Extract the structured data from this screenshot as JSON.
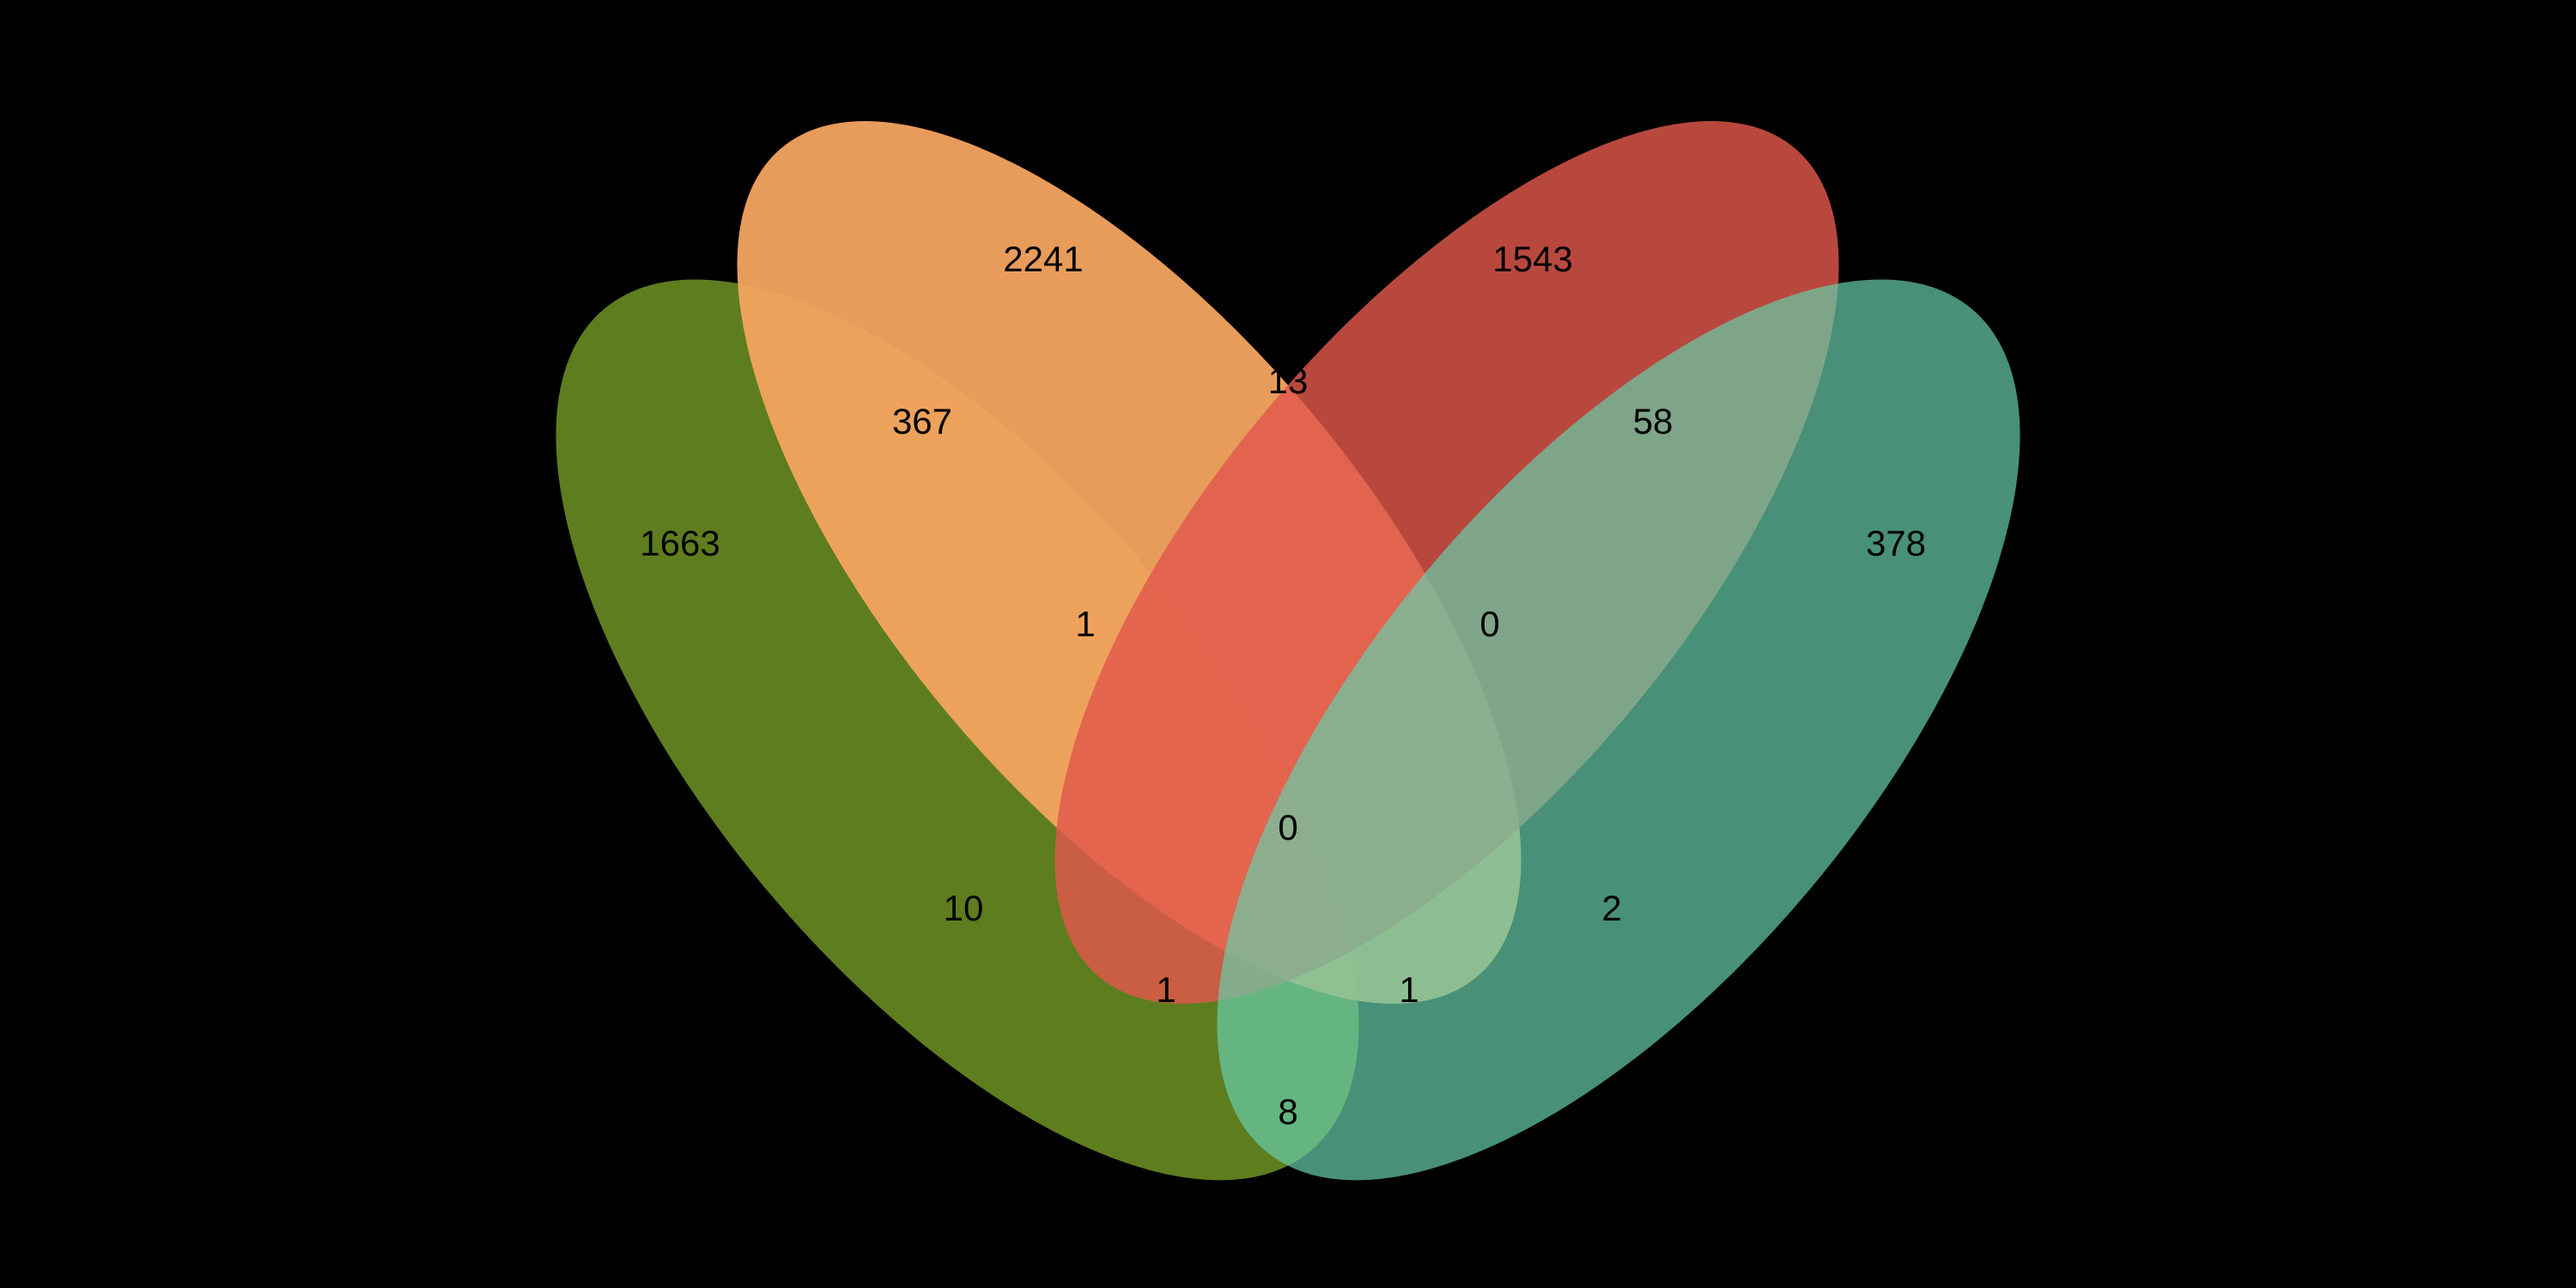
{
  "sets": [
    {
      "id": "A",
      "color": "#6B8E23",
      "opacity": 0.88
    },
    {
      "id": "B",
      "color": "#F4A460",
      "opacity": 0.95
    },
    {
      "id": "C",
      "color": "#E0584C",
      "opacity": 0.82
    },
    {
      "id": "D",
      "color": "#66CDAA",
      "opacity": 0.7
    }
  ],
  "regions": {
    "A": "1663",
    "B": "2241",
    "C": "1543",
    "D": "378",
    "AB": "367",
    "BC": "13",
    "CD": "58",
    "ABC": "1",
    "BCD": "0",
    "ABCD": "0",
    "AC": "10",
    "BD": "2",
    "ACD": "1",
    "ABD": "1",
    "AD": "8"
  }
}
